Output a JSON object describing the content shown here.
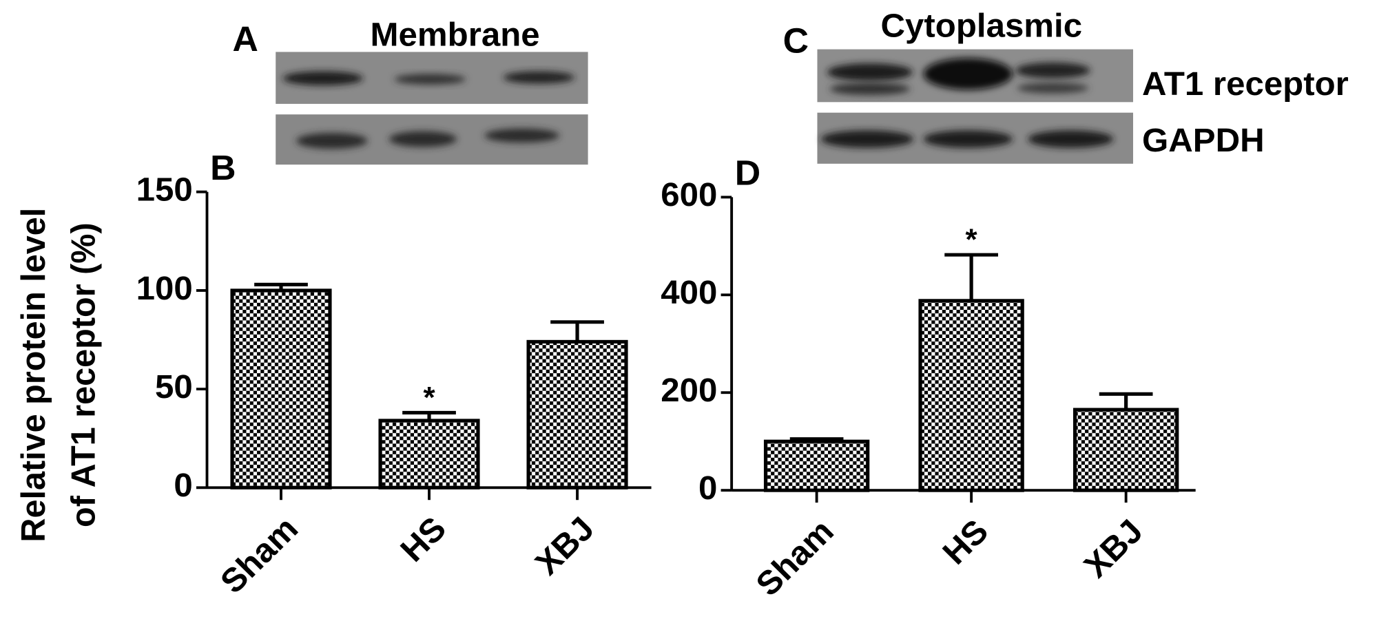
{
  "blots": [
    {
      "panel": "A",
      "title": "Membrane"
    },
    {
      "panel": "C",
      "title": "Cytoplasmic",
      "row_labels": [
        "AT1 receptor",
        "GAPDH"
      ]
    }
  ],
  "chart_data": [
    {
      "type": "bar",
      "panel": "B",
      "ylabel": [
        "Relative protein level",
        "of AT1 receptor (%)"
      ],
      "categories": [
        "Sham",
        "HS",
        "XBJ"
      ],
      "values": [
        100,
        34,
        74
      ],
      "errors": [
        3,
        4,
        10
      ],
      "annotations": [
        {
          "category": "HS",
          "text": "*"
        }
      ],
      "ylim": [
        0,
        150
      ],
      "yticks": [
        0,
        50,
        100,
        150
      ],
      "color": "checkerboard"
    },
    {
      "type": "bar",
      "panel": "D",
      "categories": [
        "Sham",
        "HS",
        "XBJ"
      ],
      "values": [
        100,
        388,
        165
      ],
      "errors": [
        5,
        94,
        32
      ],
      "annotations": [
        {
          "category": "HS",
          "text": "*"
        }
      ],
      "ylim": [
        0,
        600
      ],
      "yticks": [
        0,
        200,
        400,
        600
      ],
      "color": "checkerboard"
    }
  ]
}
